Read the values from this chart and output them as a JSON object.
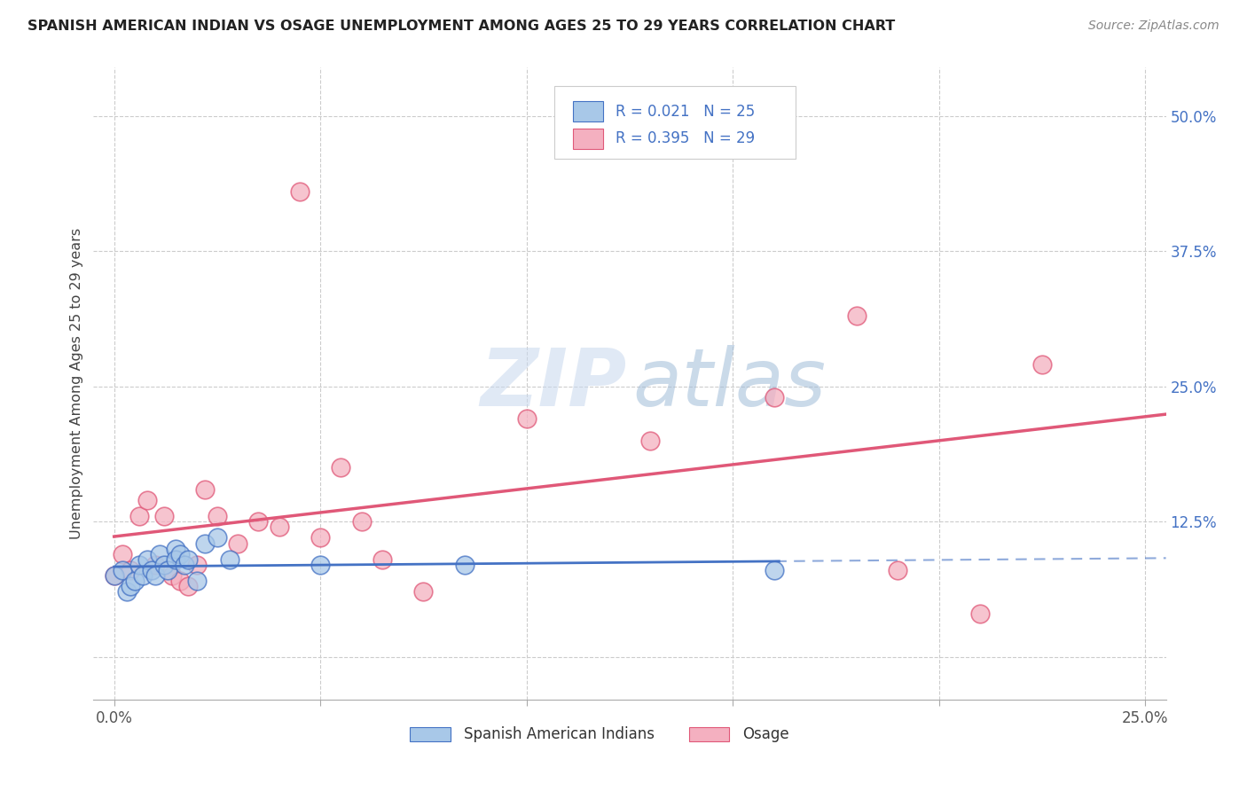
{
  "title": "SPANISH AMERICAN INDIAN VS OSAGE UNEMPLOYMENT AMONG AGES 25 TO 29 YEARS CORRELATION CHART",
  "source": "Source: ZipAtlas.com",
  "ylabel": "Unemployment Among Ages 25 to 29 years",
  "xlim": [
    -0.005,
    0.255
  ],
  "ylim": [
    -0.04,
    0.545
  ],
  "legend_label1": "Spanish American Indians",
  "legend_label2": "Osage",
  "R1": "0.021",
  "N1": "25",
  "R2": "0.395",
  "N2": "29",
  "color_blue": "#a8c8e8",
  "color_pink": "#f4b0c0",
  "line_blue": "#4472c4",
  "line_pink": "#e05878",
  "blue_x": [
    0.0,
    0.002,
    0.003,
    0.004,
    0.005,
    0.006,
    0.007,
    0.008,
    0.009,
    0.01,
    0.011,
    0.012,
    0.013,
    0.015,
    0.015,
    0.016,
    0.017,
    0.018,
    0.02,
    0.022,
    0.025,
    0.028,
    0.05,
    0.085,
    0.16
  ],
  "blue_y": [
    0.075,
    0.08,
    0.06,
    0.065,
    0.07,
    0.085,
    0.075,
    0.09,
    0.08,
    0.075,
    0.095,
    0.085,
    0.08,
    0.1,
    0.09,
    0.095,
    0.085,
    0.09,
    0.07,
    0.105,
    0.11,
    0.09,
    0.085,
    0.085,
    0.08
  ],
  "pink_x": [
    0.0,
    0.002,
    0.004,
    0.006,
    0.008,
    0.01,
    0.012,
    0.014,
    0.016,
    0.018,
    0.02,
    0.022,
    0.025,
    0.03,
    0.035,
    0.04,
    0.045,
    0.05,
    0.055,
    0.06,
    0.065,
    0.075,
    0.1,
    0.13,
    0.16,
    0.18,
    0.19,
    0.21,
    0.225
  ],
  "pink_y": [
    0.075,
    0.095,
    0.08,
    0.13,
    0.145,
    0.085,
    0.13,
    0.075,
    0.07,
    0.065,
    0.085,
    0.155,
    0.13,
    0.105,
    0.125,
    0.12,
    0.43,
    0.11,
    0.175,
    0.125,
    0.09,
    0.06,
    0.22,
    0.2,
    0.24,
    0.315,
    0.08,
    0.04,
    0.27
  ],
  "grid_color": "#cccccc",
  "watermark_zip_color": "#c8d8ee",
  "watermark_atlas_color": "#a0bcd8"
}
